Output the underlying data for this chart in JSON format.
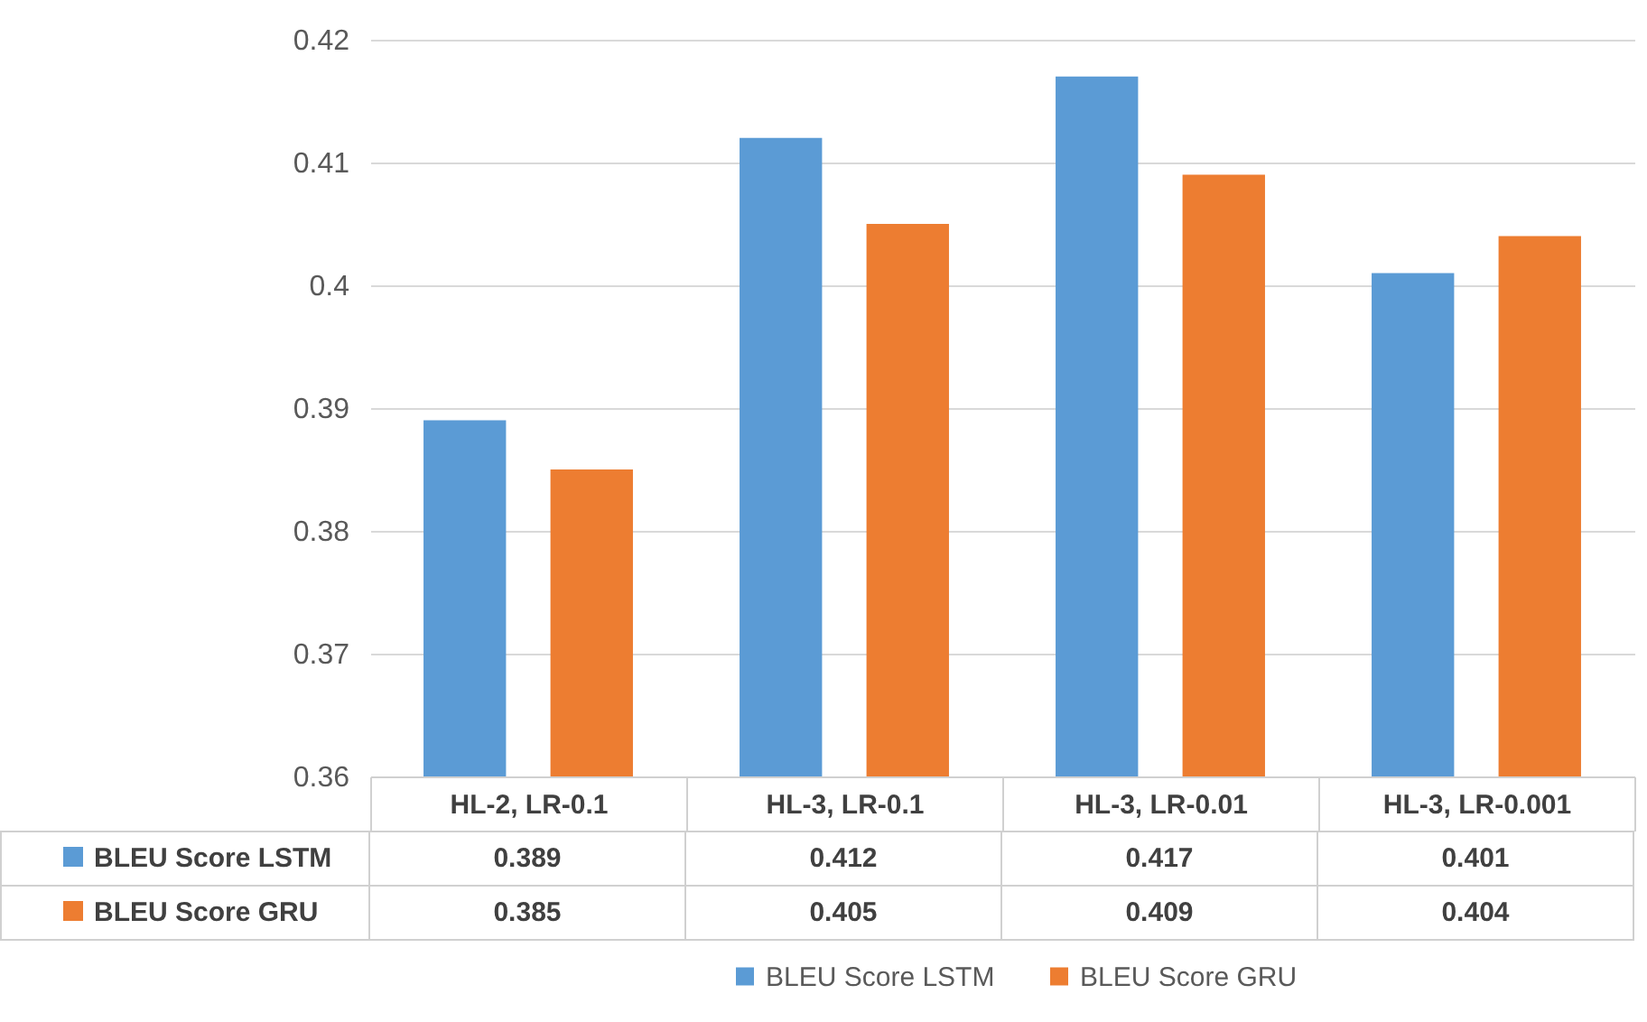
{
  "chart_data": {
    "type": "bar",
    "categories": [
      "HL-2, LR-0.1",
      "HL-3, LR-0.1",
      "HL-3, LR-0.01",
      "HL-3, LR-0.001"
    ],
    "series": [
      {
        "name": "BLEU Score LSTM",
        "color": "#5b9bd5",
        "values": [
          0.389,
          0.412,
          0.417,
          0.401
        ]
      },
      {
        "name": "BLEU Score GRU",
        "color": "#ed7d31",
        "values": [
          0.385,
          0.405,
          0.409,
          0.404
        ]
      }
    ],
    "ylim": [
      0.36,
      0.42
    ],
    "yticks": [
      0.36,
      0.37,
      0.38,
      0.39,
      0.4,
      0.41,
      0.42
    ],
    "grid": "y",
    "legend": "bottom",
    "data_labels": true
  }
}
